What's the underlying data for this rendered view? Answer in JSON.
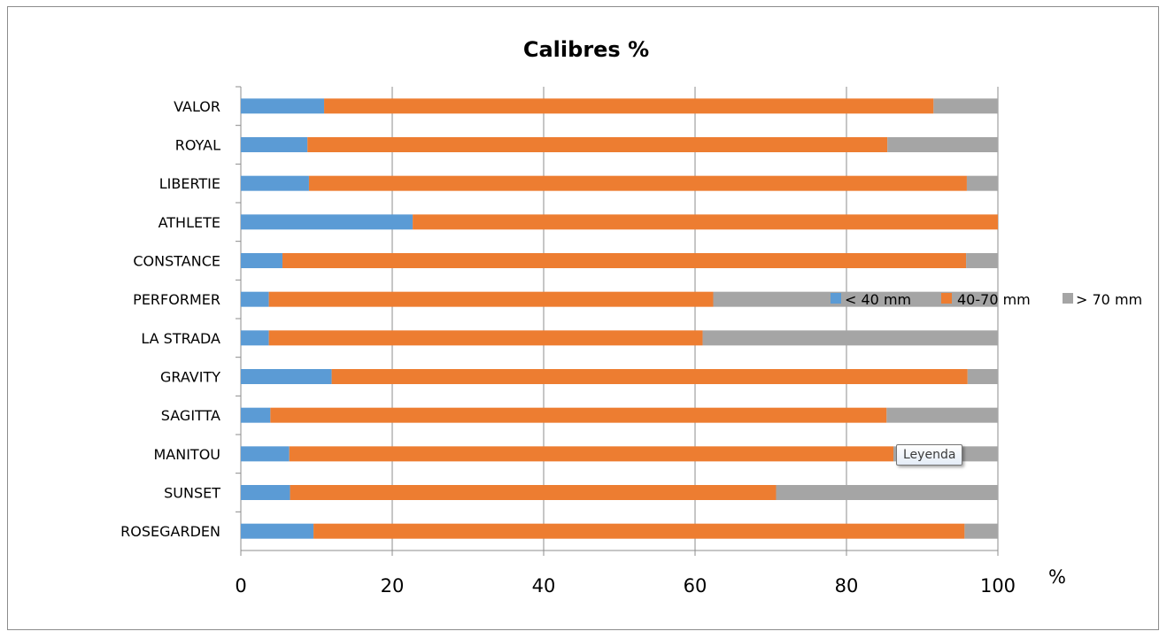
{
  "chart_data": {
    "type": "bar",
    "orientation": "horizontal",
    "stacked": true,
    "title": "Calibres  %",
    "xlabel": "%",
    "ylabel": "",
    "xlim": [
      0,
      100
    ],
    "xticks": [
      0,
      20,
      40,
      60,
      80,
      100
    ],
    "grid": true,
    "legend_position": "right",
    "categories": [
      "VALOR",
      "ROYAL",
      "LIBERTIE",
      "ATHLETE",
      "CONSTANCE",
      "PERFORMER",
      "LA STRADA",
      "GRAVITY",
      "SAGITTA",
      "MANITOU",
      "SUNSET",
      "ROSEGARDEN"
    ],
    "series": [
      {
        "name": "< 40 mm",
        "color": "#5b9bd5",
        "values": [
          11.0,
          8.8,
          9.0,
          22.7,
          5.5,
          3.7,
          3.7,
          12.0,
          3.9,
          6.4,
          6.5,
          9.6
        ]
      },
      {
        "name": "40-70 mm",
        "color": "#ed7d31",
        "values": [
          80.5,
          76.6,
          86.9,
          77.3,
          90.3,
          58.7,
          57.3,
          84.0,
          81.4,
          79.8,
          64.2,
          86.0
        ]
      },
      {
        "name": "> 70 mm",
        "color": "#a5a5a5",
        "values": [
          8.5,
          14.6,
          4.1,
          0.0,
          4.2,
          37.6,
          39.0,
          4.0,
          14.7,
          13.8,
          29.3,
          4.4
        ]
      }
    ]
  },
  "tooltip": {
    "text": "Leyenda"
  }
}
